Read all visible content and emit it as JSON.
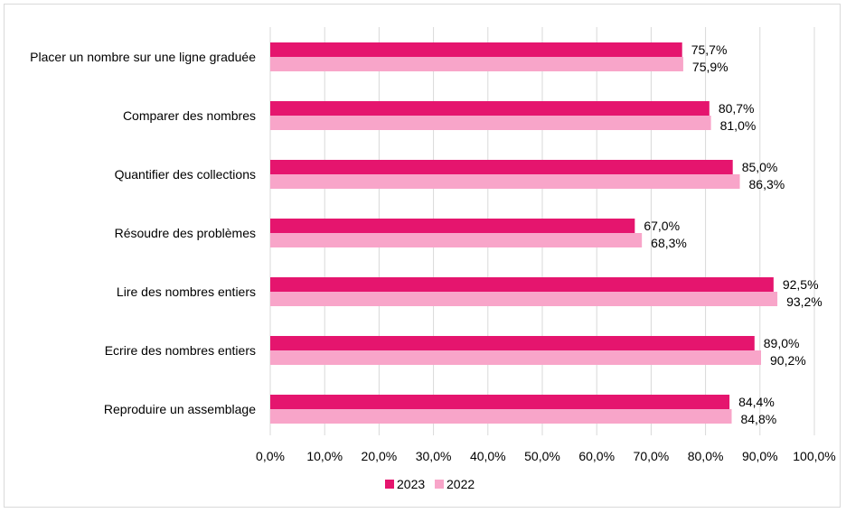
{
  "chart_data": {
    "type": "bar",
    "orientation": "horizontal",
    "categories": [
      "Placer un nombre sur une ligne graduée",
      "Comparer des nombres",
      "Quantifier des collections",
      "Résoudre des problèmes",
      "Lire des nombres entiers",
      "Ecrire des nombres entiers",
      "Reproduire un assemblage"
    ],
    "series": [
      {
        "name": "2023",
        "color": "#e5156e",
        "values": [
          75.7,
          80.7,
          85.0,
          67.0,
          92.5,
          89.0,
          84.4
        ],
        "labels": [
          "75,7%",
          "80,7%",
          "85,0%",
          "67,0%",
          "92,5%",
          "89,0%",
          "84,4%"
        ]
      },
      {
        "name": "2022",
        "color": "#f8a5c9",
        "values": [
          75.9,
          81.0,
          86.3,
          68.3,
          93.2,
          90.2,
          84.8
        ],
        "labels": [
          "75,9%",
          "81,0%",
          "86,3%",
          "68,3%",
          "93,2%",
          "90,2%",
          "84,8%"
        ]
      }
    ],
    "xlim": [
      0,
      100
    ],
    "xticks": [
      "0,0%",
      "10,0%",
      "20,0%",
      "30,0%",
      "40,0%",
      "50,0%",
      "60,0%",
      "70,0%",
      "80,0%",
      "90,0%",
      "100,0%"
    ],
    "grid": "vertical",
    "legend_position": "bottom"
  }
}
